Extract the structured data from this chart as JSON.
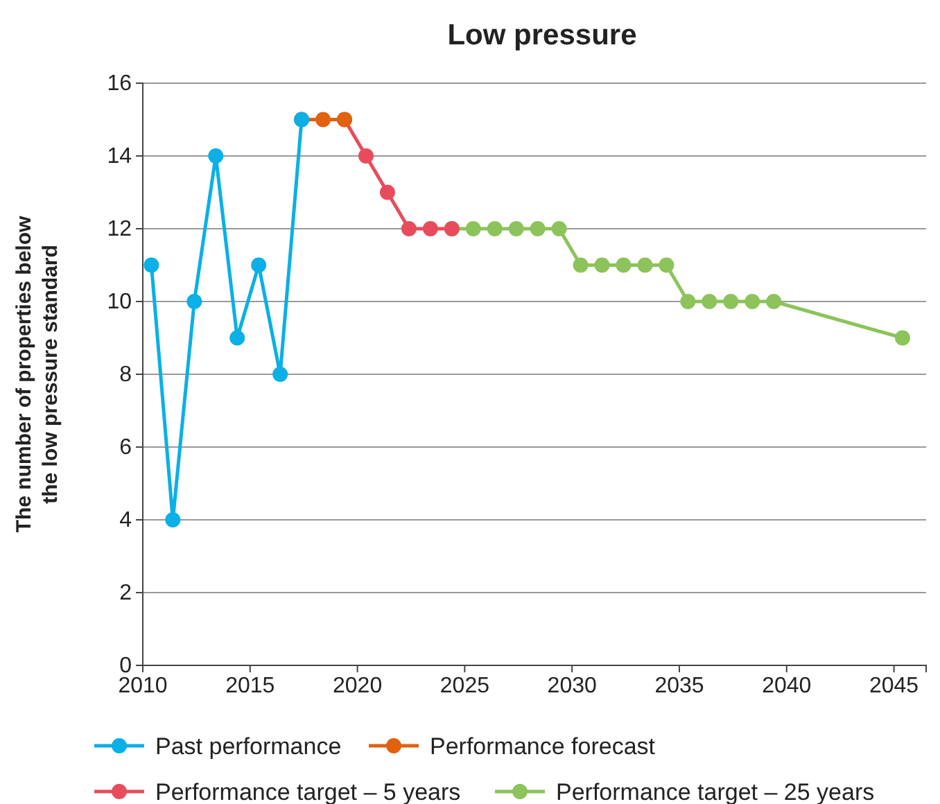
{
  "chart_data": {
    "type": "line",
    "title": "Low pressure",
    "ylabel": "The number of properties below the low pressure standard",
    "xlim": [
      2010,
      2046.5
    ],
    "xticks": [
      2010,
      2015,
      2020,
      2025,
      2030,
      2035,
      2040,
      2045
    ],
    "ylim": [
      0,
      16
    ],
    "yticks": [
      0,
      2,
      4,
      6,
      8,
      10,
      12,
      14,
      16
    ],
    "grid": "y",
    "legend": "bottom",
    "marker": "circle",
    "line_style": "solid",
    "series": [
      {
        "name": "Past performance",
        "color": "#0ab0e6",
        "x": [
          2010.4,
          2011.4,
          2012.4,
          2013.4,
          2014.4,
          2015.4,
          2016.4,
          2017.4
        ],
        "values": [
          11,
          4,
          10,
          14,
          9,
          11,
          8,
          15
        ]
      },
      {
        "name": "Performance forecast",
        "color": "#e0620e",
        "x": [
          2017.4,
          2018.4,
          2019.4
        ],
        "values": [
          15,
          15,
          15
        ]
      },
      {
        "name": "Performance target – 5 years",
        "color": "#e84c5c",
        "x": [
          2019.4,
          2020.4,
          2021.4,
          2022.4,
          2023.4,
          2024.4
        ],
        "values": [
          15,
          14,
          13,
          12,
          12,
          12
        ]
      },
      {
        "name": "Performance target – 25 years",
        "color": "#8cc35a",
        "x": [
          2024.4,
          2025.4,
          2026.4,
          2027.4,
          2028.4,
          2029.4,
          2030.4,
          2031.4,
          2032.4,
          2033.4,
          2034.4,
          2035.4,
          2036.4,
          2037.4,
          2038.4,
          2039.4,
          2045.4
        ],
        "values": [
          12,
          12,
          12,
          12,
          12,
          12,
          11,
          11,
          11,
          11,
          11,
          10,
          10,
          10,
          10,
          10,
          9
        ]
      }
    ]
  }
}
